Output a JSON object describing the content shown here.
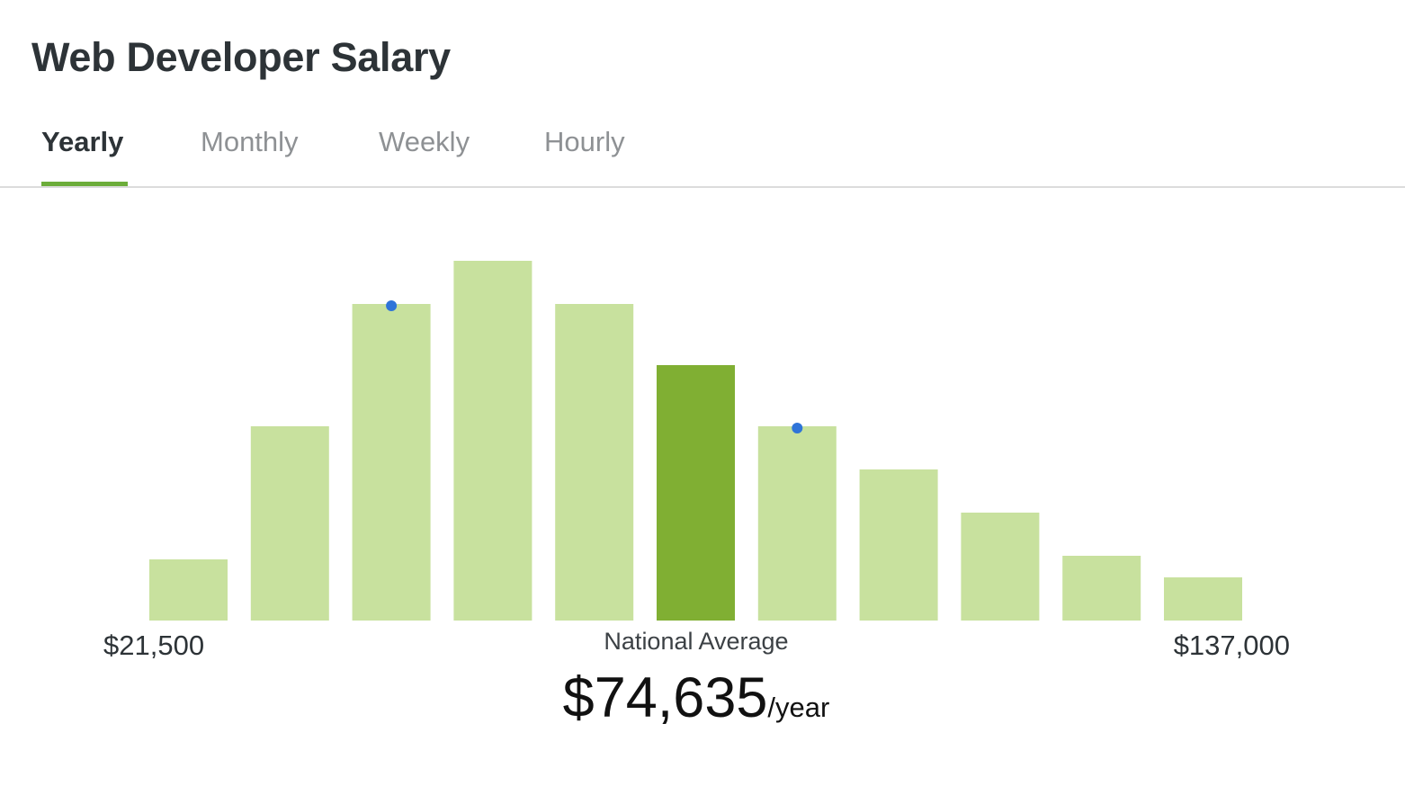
{
  "page": {
    "title": "Web Developer Salary"
  },
  "tabs": [
    {
      "label": "Yearly",
      "active": true
    },
    {
      "label": "Monthly",
      "active": false
    },
    {
      "label": "Weekly",
      "active": false
    },
    {
      "label": "Hourly",
      "active": false
    }
  ],
  "colors": {
    "bar": "#c8e19e",
    "bar_highlight": "#80af33",
    "marker": "#2f74d8",
    "tab_accent": "#6cad3a"
  },
  "chart_data": {
    "type": "bar",
    "series": [
      {
        "values": [
          17,
          54,
          88,
          100,
          88,
          71,
          54,
          42,
          30,
          18,
          12
        ]
      }
    ],
    "highlight_index": 5,
    "marker_indices": [
      2,
      6
    ],
    "ylim": [
      0,
      100
    ],
    "grid": false,
    "range_min_label": "$21,500",
    "range_max_label": "$137,000"
  },
  "summary": {
    "label": "National Average",
    "amount": "$74,635",
    "unit": "/year"
  }
}
